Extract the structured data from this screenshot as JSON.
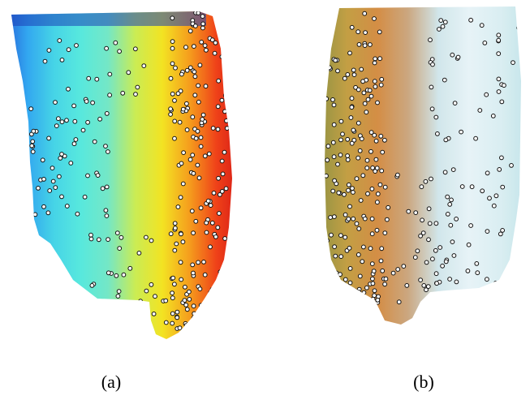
{
  "captions": {
    "a": "(a)",
    "b": "(b)"
  },
  "colors": {
    "panel_a_gradient": [
      "#1d4fd2",
      "#2aa3f0",
      "#3fd3e6",
      "#52e8dc",
      "#6fe7c4",
      "#c9ec4d",
      "#f3e21a",
      "#f59a14",
      "#ef3a10",
      "#d10c0c"
    ],
    "panel_b_gradient": [
      "#8a8e3a",
      "#c09a3a",
      "#d2883c",
      "#c9a37a",
      "#cfe5ea",
      "#e6f3f7",
      "#d9eef2",
      "#bfe2e8"
    ],
    "marker_fill": "#ffffff",
    "marker_stroke": "#111111"
  }
}
